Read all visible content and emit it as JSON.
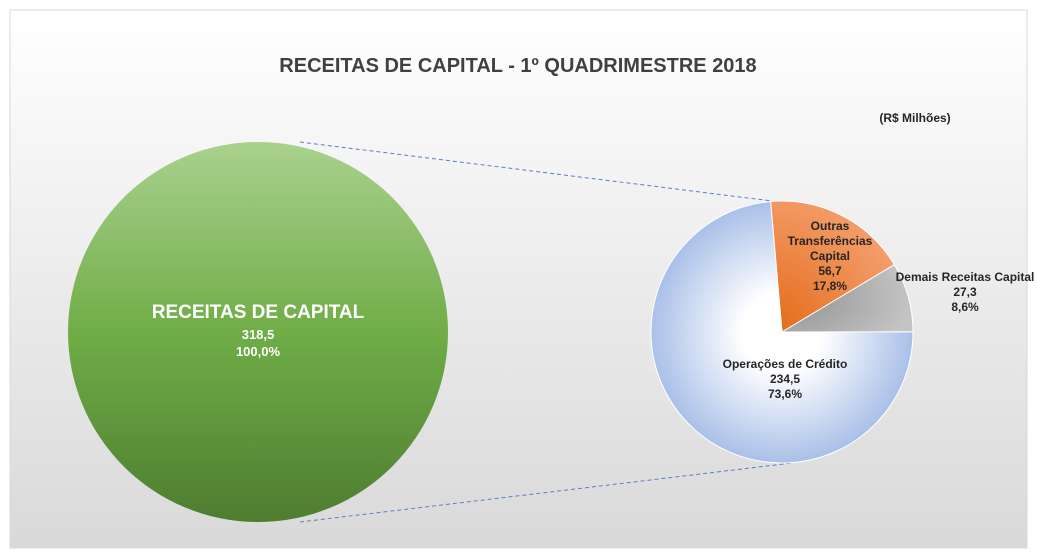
{
  "chart_data": {
    "type": "pie",
    "title": "RECEITAS DE CAPITAL - 1º QUADRIMESTRE 2018",
    "subtitle": "(R$ Milhões)",
    "total": {
      "name": "RECEITAS DE CAPITAL",
      "value": 318.5,
      "value_label": "318,5",
      "percent": 100,
      "percent_label": "100,0%",
      "color": "#70ad47"
    },
    "categories": [
      "Outras Transferências Capital",
      "Demais Receitas Capital",
      "Operações de Crédito"
    ],
    "values": [
      56.7,
      27.3,
      234.5
    ],
    "value_labels": [
      "56,7",
      "27,3",
      "234,5"
    ],
    "percents": [
      17.8,
      8.6,
      73.6
    ],
    "percent_labels": [
      "17,8%",
      "8,6%",
      "73,6%"
    ],
    "colors": [
      "#ed7d31",
      "#a5a5a5",
      "#b4c7e7"
    ]
  }
}
